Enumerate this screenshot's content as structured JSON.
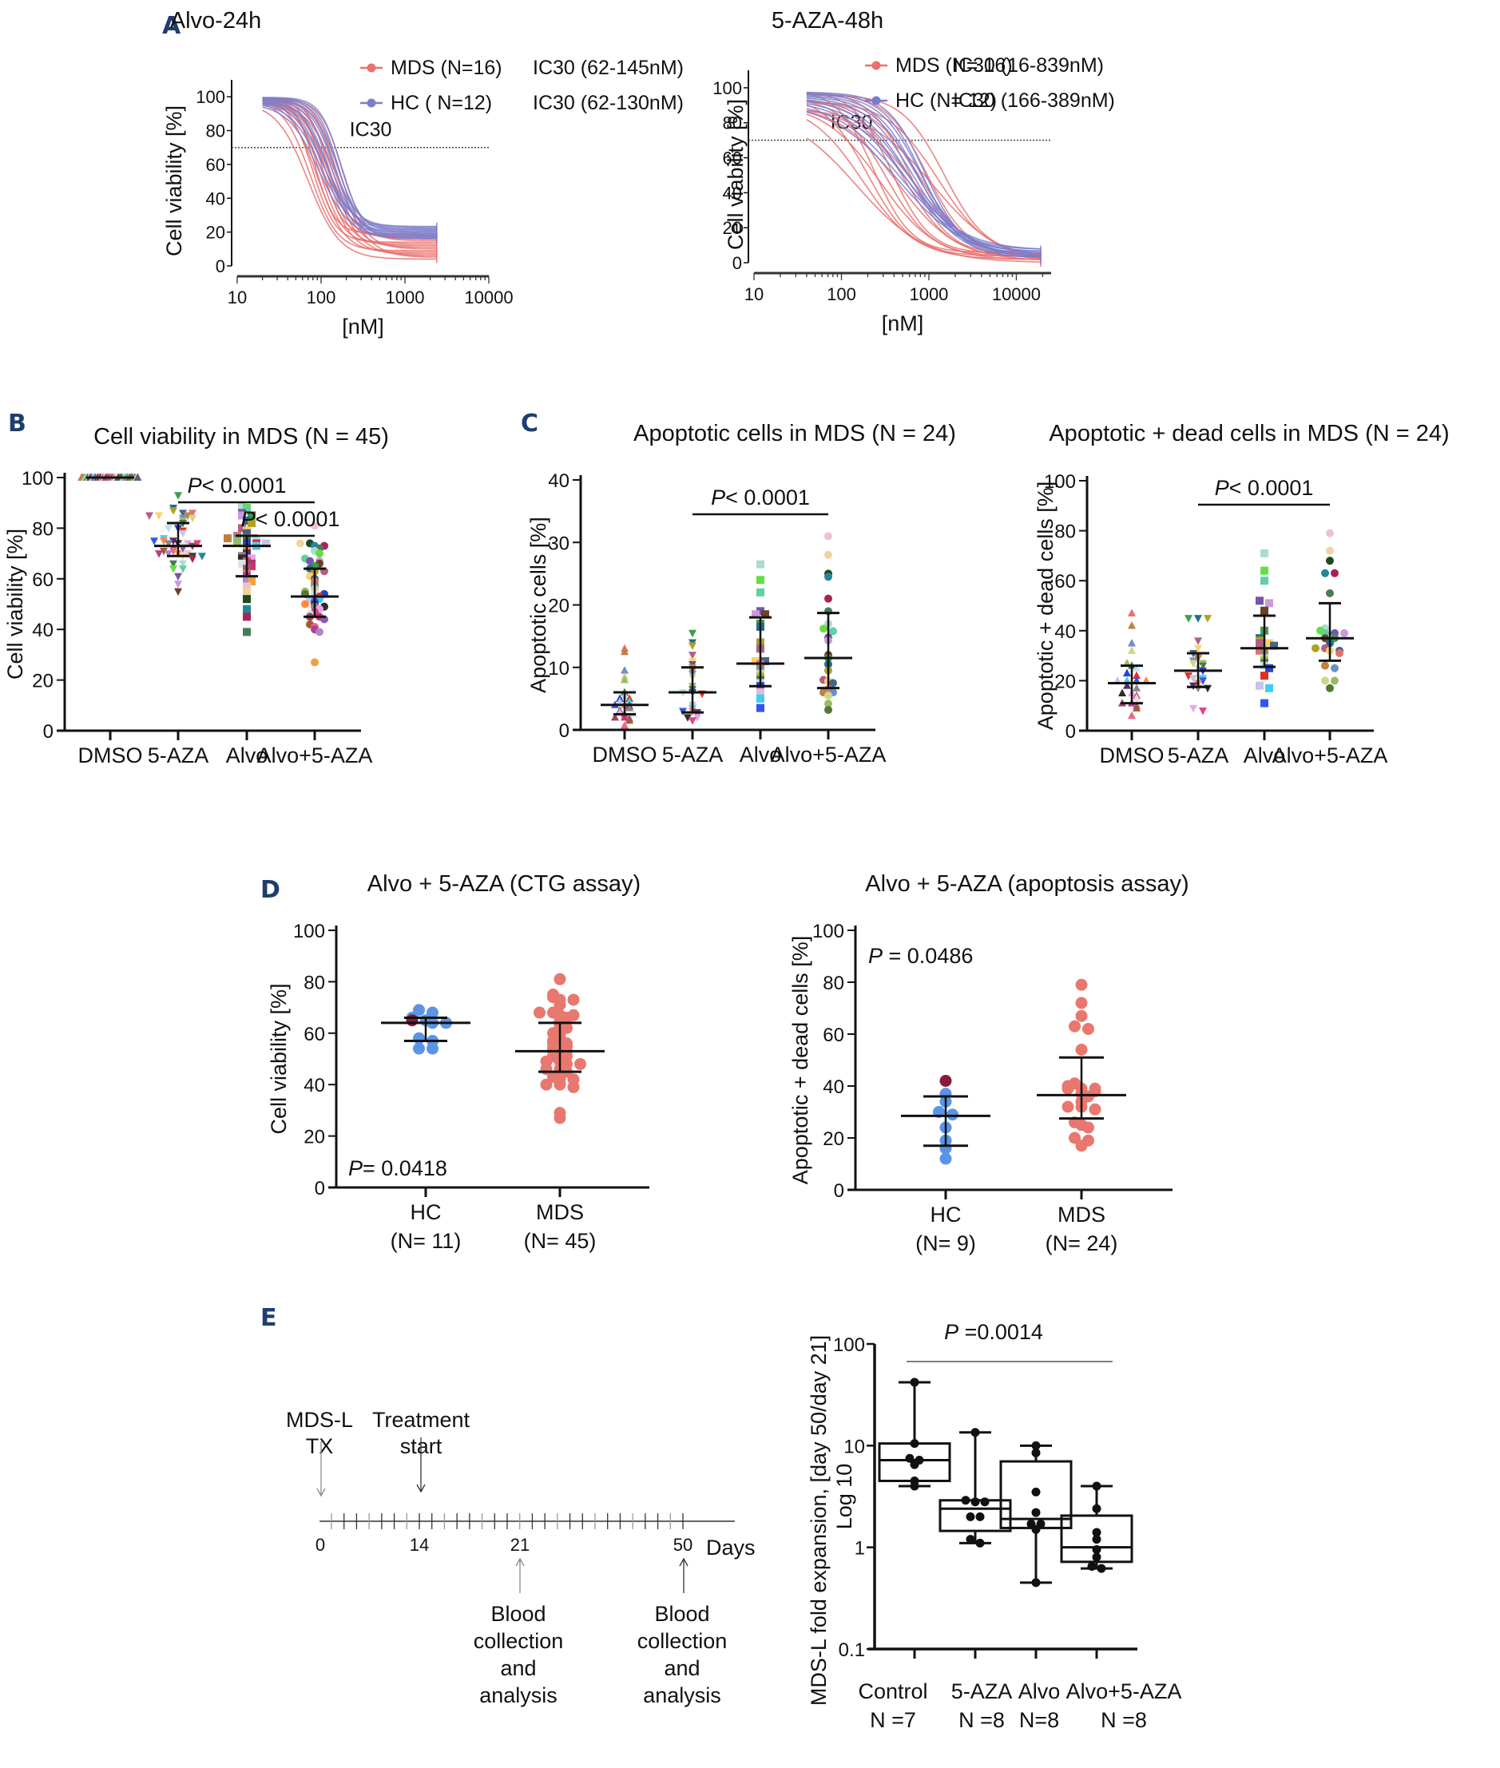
{
  "figure": {
    "panel_letters": [
      "A",
      "B",
      "C",
      "D",
      "E"
    ]
  },
  "colors": {
    "mds": "#e8706e",
    "hc": "#7b7ccb",
    "hc_dot": "#5b93e6",
    "hc_outlier": "#8b1a3a",
    "mds_dot": "#e8786f",
    "panel_letter": "#1f3d6e",
    "axis": "#111111"
  },
  "chart_data": [
    {
      "id": "A1",
      "type": "line",
      "title": "Alvo-24h",
      "xlabel": "[nM]",
      "ylabel": "Cell viability [%]",
      "xscale": "log",
      "xlim": [
        10,
        10000
      ],
      "ylim": [
        0,
        110
      ],
      "xticks": [
        "10",
        "100",
        "1000",
        "10000"
      ],
      "yticks": [
        "0",
        "20",
        "40",
        "60",
        "80",
        "100"
      ],
      "reference_line": {
        "y": 70,
        "label": "IC30",
        "style": "dotted"
      },
      "legend": [
        {
          "name": "MDS (N=16)",
          "note": "IC30 (62-145nM)",
          "color": "#e8706e"
        },
        {
          "name": "HC ( N=12)",
          "note": "IC30 (62-130nM)",
          "color": "#7b7ccb"
        }
      ],
      "legend_position": "top-right",
      "series": [
        {
          "group": "MDS",
          "n": 16,
          "ic50_range_nM": [
            70,
            180
          ],
          "top": [
            97,
            100
          ],
          "bottom": [
            4,
            20
          ],
          "x_range_nM": [
            20,
            2400
          ]
        },
        {
          "group": "HC",
          "n": 12,
          "ic50_range_nM": [
            95,
            170
          ],
          "top": [
            96,
            100
          ],
          "bottom": [
            16,
            24
          ],
          "x_range_nM": [
            20,
            2400
          ]
        }
      ]
    },
    {
      "id": "A2",
      "type": "line",
      "title": "5-AZA-48h",
      "xlabel": "[nM]",
      "ylabel": "Cell viability [%]",
      "xscale": "log",
      "xlim": [
        10,
        25000
      ],
      "ylim": [
        0,
        110
      ],
      "xticks": [
        "10",
        "100",
        "1000",
        "10000"
      ],
      "yticks": [
        "0",
        "20",
        "40",
        "60",
        "80",
        "100"
      ],
      "reference_line": {
        "y": 70,
        "label": "IC30",
        "style": "dotted"
      },
      "legend": [
        {
          "name": "MDS (N= 16)",
          "note": "IC30 (16-839nM)",
          "color": "#e8706e"
        },
        {
          "name": "HC (N= 12)",
          "note": "IC30 (166-389nM)",
          "color": "#7b7ccb"
        }
      ],
      "legend_position": "top-right",
      "series": [
        {
          "group": "MDS",
          "n": 16,
          "ic50_range_nM": [
            150,
            1500
          ],
          "top": [
            88,
            100
          ],
          "bottom": [
            0,
            6
          ],
          "x_range_nM": [
            40,
            19000
          ]
        },
        {
          "group": "HC",
          "n": 12,
          "ic50_range_nM": [
            450,
            900
          ],
          "top": [
            92,
            98
          ],
          "bottom": [
            2,
            8
          ],
          "x_range_nM": [
            40,
            19000
          ]
        }
      ]
    },
    {
      "id": "B",
      "type": "scatter",
      "title": "Cell viability in MDS (N = 45)",
      "ylabel": "Cell viability [%]",
      "ylim": [
        0,
        100
      ],
      "yticks": [
        "0",
        "20",
        "40",
        "60",
        "80",
        "100"
      ],
      "categories": [
        "DMSO",
        "5-AZA",
        "Alvo",
        "Alvo+5-AZA"
      ],
      "markers": [
        "triangle-up",
        "triangle-down",
        "square",
        "circle"
      ],
      "summary": [
        {
          "mean": 100,
          "sd_low": 100,
          "sd_high": 100
        },
        {
          "mean": 73,
          "sd_low": 69,
          "sd_high": 82
        },
        {
          "mean": 73,
          "sd_low": 61,
          "sd_high": 77
        },
        {
          "mean": 53,
          "sd_low": 45,
          "sd_high": 64
        }
      ],
      "values": [
        [
          100,
          100,
          100,
          100,
          100,
          100,
          100,
          100,
          100,
          100,
          100,
          100,
          100,
          100,
          100,
          100,
          100,
          100,
          100,
          100,
          100,
          100,
          100,
          100,
          100,
          100,
          100,
          100,
          100,
          100,
          100,
          100,
          100,
          100,
          100,
          100,
          100,
          100,
          100,
          100,
          100,
          100,
          100,
          100,
          100
        ],
        [
          93,
          88,
          87,
          85,
          85,
          86,
          86,
          85,
          84,
          84,
          83,
          82,
          80,
          80,
          79,
          78,
          76,
          75,
          75,
          75,
          74,
          74,
          74,
          74,
          73,
          73,
          72,
          72,
          71,
          71,
          70,
          70,
          70,
          70,
          69,
          69,
          69,
          68,
          66,
          66,
          64,
          64,
          61,
          58,
          55
        ],
        [
          89,
          88,
          87,
          86,
          85,
          85,
          84,
          83,
          82,
          80,
          79,
          78,
          77,
          76,
          76,
          76,
          75,
          75,
          75,
          74,
          74,
          74,
          73,
          72,
          71,
          70,
          69,
          68,
          68,
          67,
          66,
          66,
          65,
          64,
          63,
          62,
          61,
          60,
          59,
          57,
          55,
          52,
          48,
          45,
          39
        ],
        [
          81,
          74,
          74,
          73,
          73,
          72,
          71,
          70,
          68,
          67,
          67,
          66,
          65,
          64,
          63,
          63,
          61,
          60,
          59,
          58,
          57,
          56,
          55,
          54,
          54,
          54,
          53,
          52,
          52,
          51,
          50,
          50,
          49,
          49,
          48,
          47,
          46,
          45,
          45,
          44,
          42,
          41,
          40,
          39,
          27
        ]
      ],
      "annotations": [
        {
          "text": "P< 0.0001",
          "from": "5-AZA",
          "to": "Alvo+5-AZA"
        },
        {
          "text": "P< 0.0001",
          "from": "Alvo",
          "to": "Alvo+5-AZA"
        }
      ]
    },
    {
      "id": "C1",
      "type": "scatter",
      "title": "Apoptotic cells in MDS (N = 24)",
      "ylabel": "Apoptotic cells [%]",
      "ylim": [
        0,
        40
      ],
      "yticks": [
        "0",
        "10",
        "20",
        "30",
        "40"
      ],
      "categories": [
        "DMSO",
        "5-AZA",
        "Alvo",
        "Alvo+5-AZA"
      ],
      "markers": [
        "triangle-up",
        "triangle-down",
        "square",
        "circle"
      ],
      "summary": [
        {
          "mean": 4,
          "sd_low": 2.5,
          "sd_high": 6
        },
        {
          "mean": 6,
          "sd_low": 2.8,
          "sd_high": 10
        },
        {
          "mean": 10.6,
          "sd_low": 7,
          "sd_high": 18
        },
        {
          "mean": 11.5,
          "sd_low": 6.7,
          "sd_high": 18.7
        }
      ],
      "values": [
        [
          13,
          12.5,
          9.5,
          8.5,
          8,
          6,
          5.5,
          5,
          5,
          4.5,
          4.5,
          4,
          4,
          3.8,
          3.5,
          3,
          2.8,
          2.5,
          2.5,
          2,
          2,
          1.8,
          1.5,
          0.7
        ],
        [
          15.5,
          14,
          13.5,
          12,
          11,
          10.5,
          10,
          9.5,
          9,
          8.5,
          7,
          6.5,
          6,
          6,
          5.8,
          4,
          3.5,
          3,
          3,
          2.8,
          2.5,
          2,
          2,
          1.5
        ],
        [
          26.5,
          24,
          22,
          19,
          18.5,
          18.5,
          17,
          16.5,
          14,
          13,
          11,
          11,
          10.5,
          10,
          9.5,
          9,
          8.5,
          8,
          7.5,
          7,
          6.5,
          6,
          5,
          3.5
        ],
        [
          31,
          28,
          25,
          24.5,
          21,
          19,
          17,
          16.2,
          15.8,
          14.8,
          14.3,
          12,
          11.5,
          10.5,
          9.5,
          8,
          7.8,
          7.5,
          6.5,
          6,
          6,
          5.5,
          4.2,
          3.2
        ]
      ],
      "annotations": [
        {
          "text": "P< 0.0001",
          "from": "5-AZA",
          "to": "Alvo+5-AZA"
        }
      ]
    },
    {
      "id": "C2",
      "type": "scatter",
      "title": "Apoptotic + dead cells in MDS (N = 24)",
      "ylabel": "Apoptotic + dead cells [%]",
      "ylim": [
        0,
        100
      ],
      "yticks": [
        "0",
        "20",
        "40",
        "60",
        "80",
        "100"
      ],
      "categories": [
        "DMSO",
        "5-AZA",
        "Alvo",
        "Alvo+5-AZA"
      ],
      "markers": [
        "triangle-up",
        "triangle-down",
        "square",
        "circle"
      ],
      "summary": [
        {
          "mean": 19,
          "sd_low": 11,
          "sd_high": 26
        },
        {
          "mean": 24,
          "sd_low": 17.5,
          "sd_high": 31
        },
        {
          "mean": 33,
          "sd_low": 25.5,
          "sd_high": 46
        },
        {
          "mean": 37,
          "sd_low": 28,
          "sd_high": 51
        }
      ],
      "values": [
        [
          47,
          42,
          35,
          32,
          27,
          26,
          25,
          23,
          22,
          20,
          20,
          20,
          20,
          18,
          17,
          15,
          15,
          14,
          13,
          11,
          11,
          10,
          9,
          6
        ],
        [
          45,
          45,
          45,
          36,
          33,
          31,
          30,
          29,
          28,
          27,
          27,
          26,
          25,
          24,
          22,
          21,
          21,
          20,
          19,
          18,
          17,
          17,
          9,
          8
        ],
        [
          71,
          64,
          60,
          52,
          51,
          48,
          40,
          37,
          36,
          35,
          35,
          34,
          32,
          31,
          30,
          29,
          28,
          27,
          26,
          25,
          22,
          18,
          17,
          11
        ],
        [
          79,
          72,
          68,
          63,
          63,
          55,
          41,
          40,
          39,
          39,
          39,
          37,
          37,
          35,
          33,
          33,
          32,
          32,
          31,
          26,
          25,
          20,
          20,
          17
        ]
      ],
      "annotations": [
        {
          "text": "P< 0.0001",
          "from": "5-AZA",
          "to": "Alvo+5-AZA"
        }
      ]
    },
    {
      "id": "D1",
      "type": "scatter",
      "title": "Alvo + 5-AZA (CTG assay)",
      "ylabel": "Cell viability [%]",
      "ylim": [
        0,
        100
      ],
      "yticks": [
        "0",
        "20",
        "40",
        "60",
        "80",
        "100"
      ],
      "categories": [
        "HC",
        "MDS"
      ],
      "category_sublabels": [
        "(N= 11)",
        "(N= 45)"
      ],
      "summary": [
        {
          "mean": 64,
          "sd_low": 57,
          "sd_high": 66
        },
        {
          "mean": 53,
          "sd_low": 45,
          "sd_high": 64
        }
      ],
      "values": [
        [
          69,
          68,
          66,
          65,
          65,
          64,
          64,
          58,
          57,
          54,
          54
        ],
        [
          81,
          75,
          74,
          73,
          73,
          71,
          68,
          68,
          67,
          67,
          66,
          65,
          64,
          63,
          62,
          60,
          59,
          58,
          57,
          56,
          56,
          55,
          54,
          53,
          53,
          52,
          51,
          51,
          50,
          49,
          49,
          48,
          48,
          46,
          46,
          45,
          44,
          43,
          42,
          42,
          40,
          40,
          39,
          29,
          27
        ]
      ],
      "annotations": [
        {
          "text": "P= 0.0418",
          "position": "bottom-left"
        }
      ]
    },
    {
      "id": "D2",
      "type": "scatter",
      "title": "Alvo + 5-AZA (apoptosis assay)",
      "ylabel": "Apoptotic + dead cells [%]",
      "ylim": [
        0,
        100
      ],
      "yticks": [
        "0",
        "20",
        "40",
        "60",
        "80",
        "100"
      ],
      "categories": [
        "HC",
        "MDS"
      ],
      "category_sublabels": [
        "(N= 9)",
        "(N= 24)"
      ],
      "summary": [
        {
          "mean": 28.5,
          "sd_low": 17,
          "sd_high": 36
        },
        {
          "mean": 36.5,
          "sd_low": 27.5,
          "sd_high": 51
        }
      ],
      "values": [
        [
          42,
          37,
          34,
          30,
          29,
          24,
          19,
          16,
          12
        ],
        [
          79,
          72,
          67,
          63,
          62,
          54,
          41,
          40,
          39,
          39,
          39,
          38,
          37,
          36,
          34,
          32,
          32,
          31,
          26,
          25,
          24,
          20,
          19,
          17
        ]
      ],
      "annotations": [
        {
          "text": "P = 0.0486",
          "position": "top-left"
        }
      ]
    },
    {
      "id": "E2",
      "type": "box",
      "ylabel": "MDS-L fold expansion, [day 50/day 21]",
      "ylabel2": "Log 10",
      "yscale": "log",
      "ylim": [
        0.1,
        100
      ],
      "yticks": [
        "0.1",
        "1",
        "10",
        "100"
      ],
      "categories": [
        "Control",
        "5-AZA",
        "Alvo",
        "Alvo+5-AZA"
      ],
      "category_sublabels": [
        "N =7",
        "N =8",
        "N=8",
        "N =8"
      ],
      "boxes": [
        {
          "min": 4.0,
          "q1": 4.5,
          "median": 7.2,
          "q3": 10.5,
          "max": 42
        },
        {
          "min": 1.1,
          "q1": 1.45,
          "median": 2.4,
          "q3": 2.9,
          "max": 13.5
        },
        {
          "min": 0.45,
          "q1": 1.55,
          "median": 1.9,
          "q3": 7.0,
          "max": 10
        },
        {
          "min": 0.62,
          "q1": 0.72,
          "median": 1.0,
          "q3": 2.05,
          "max": 4.0
        }
      ],
      "values": [
        [
          42,
          10.5,
          7.5,
          7.2,
          6.5,
          4.5,
          4.0
        ],
        [
          13.5,
          2.9,
          2.8,
          2.8,
          2.0,
          2.0,
          1.2,
          1.1
        ],
        [
          10,
          8.5,
          3.5,
          2.2,
          1.7,
          1.7,
          1.5,
          0.45
        ],
        [
          4.0,
          2.4,
          1.4,
          1.2,
          0.95,
          0.8,
          0.65,
          0.62
        ]
      ],
      "annotations": [
        {
          "text": "P =0.0014",
          "from": "Control",
          "to": "Alvo+5-AZA"
        }
      ]
    }
  ],
  "timeline": {
    "unit_label": "Days",
    "day_labels": [
      "0",
      "14",
      "21",
      "50"
    ],
    "events_above": [
      {
        "day": 0,
        "lines": [
          "MDS-L",
          "TX"
        ]
      },
      {
        "day": 14,
        "lines": [
          "Treatment",
          "start"
        ]
      }
    ],
    "events_below": [
      {
        "day": 21,
        "lines": [
          "Blood",
          "collection",
          "and",
          "analysis"
        ]
      },
      {
        "day": 50,
        "lines": [
          "Blood",
          "collection",
          "and",
          "analysis"
        ]
      }
    ],
    "tick_count": 29
  }
}
